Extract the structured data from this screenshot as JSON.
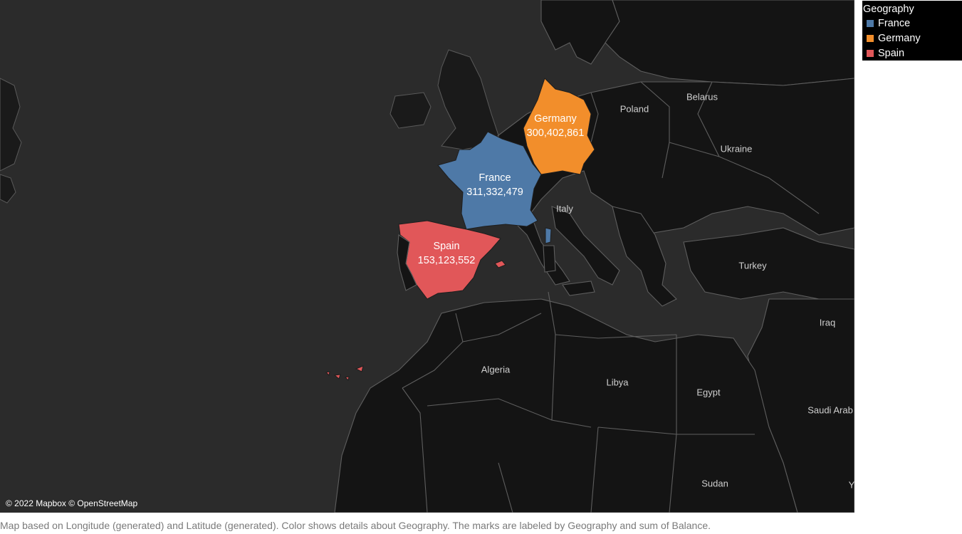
{
  "legend": {
    "title": "Geography",
    "items": [
      {
        "label": "France",
        "color": "#4e79a7"
      },
      {
        "label": "Germany",
        "color": "#f28e2b"
      },
      {
        "label": "Spain",
        "color": "#e15759"
      }
    ]
  },
  "marks": {
    "germany": {
      "name": "Germany",
      "value": "300,402,861"
    },
    "france": {
      "name": "France",
      "value": "311,332,479"
    },
    "spain": {
      "name": "Spain",
      "value": "153,123,552"
    }
  },
  "map_labels": {
    "poland": "Poland",
    "belarus": "Belarus",
    "ukraine": "Ukraine",
    "italy": "Italy",
    "turkey": "Turkey",
    "iraq": "Iraq",
    "algeria": "Algeria",
    "libya": "Libya",
    "egypt": "Egypt",
    "saudi": "Saudi Arab",
    "sudan": "Sudan",
    "y": "Y"
  },
  "attribution": "© 2022 Mapbox © OpenStreetMap",
  "caption": "Map based on Longitude (generated) and Latitude (generated).  Color shows details about Geography.  The marks are labeled by Geography and sum of Balance."
}
